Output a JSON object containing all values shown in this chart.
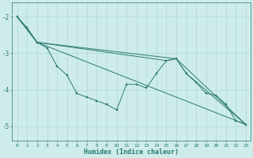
{
  "xlabel": "Humidex (Indice chaleur)",
  "background_color": "#ceecea",
  "grid_color": "#aed8d4",
  "line_color": "#2a7a72",
  "xlim": [
    -0.5,
    23.5
  ],
  "ylim": [
    -5.4,
    -1.6
  ],
  "yticks": [
    -5,
    -4,
    -3,
    -2
  ],
  "xticks": [
    0,
    1,
    2,
    3,
    4,
    5,
    6,
    7,
    8,
    9,
    10,
    11,
    12,
    13,
    14,
    15,
    16,
    17,
    18,
    19,
    20,
    21,
    22,
    23
  ],
  "series": [
    {
      "x": [
        0,
        1,
        2,
        3,
        4,
        5,
        6,
        7,
        8,
        9,
        10,
        11,
        12,
        13,
        14,
        15,
        16,
        17,
        18,
        19,
        20,
        21,
        22,
        23
      ],
      "y": [
        -2.0,
        -2.3,
        -2.7,
        -2.85,
        -3.35,
        -3.6,
        -4.1,
        -4.2,
        -4.3,
        -4.4,
        -4.55,
        -3.85,
        -3.85,
        -3.95,
        -3.55,
        -3.2,
        -3.15,
        -3.55,
        -3.8,
        -4.1,
        -4.15,
        -4.4,
        -4.85,
        -4.95
      ],
      "marker": true
    },
    {
      "x": [
        0,
        2,
        23
      ],
      "y": [
        -2.0,
        -2.7,
        -4.95
      ],
      "marker": false
    },
    {
      "x": [
        0,
        2,
        16,
        17,
        23
      ],
      "y": [
        -2.0,
        -2.7,
        -3.15,
        -3.55,
        -4.95
      ],
      "marker": false
    },
    {
      "x": [
        0,
        2,
        15,
        16,
        23
      ],
      "y": [
        -2.0,
        -2.7,
        -3.2,
        -3.15,
        -4.95
      ],
      "marker": false
    }
  ]
}
